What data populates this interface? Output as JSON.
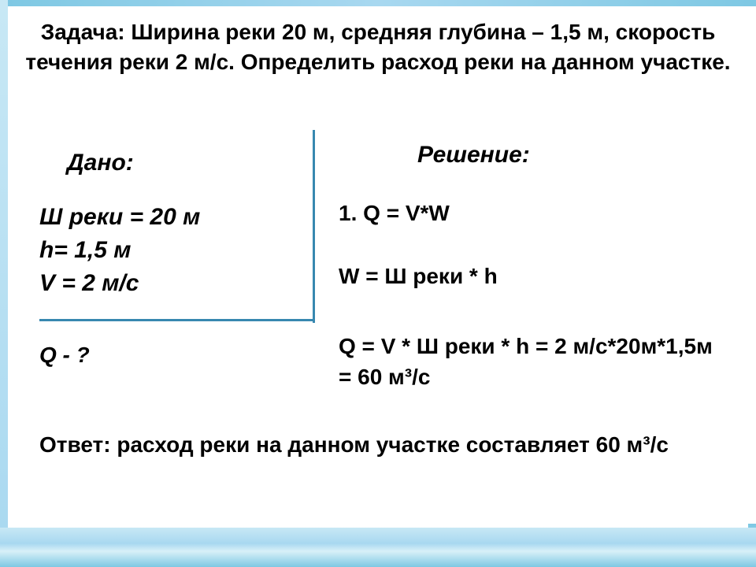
{
  "problem": {
    "statement": "Задача: Ширина реки 20 м, средняя глубина – 1,5 м, скорость течения реки 2 м/с. Определить расход реки на данном участке.",
    "statement_fontsize": 28,
    "statement_color": "#000000"
  },
  "given": {
    "label": "Дано:",
    "label_fontsize": 30,
    "line1": "Ш реки = 20 м",
    "line2": "h= 1,5 м",
    "line3": "V = 2 м/с",
    "data_fontsize": 30,
    "unknown": "Q - ?",
    "unknown_fontsize": 28
  },
  "solution": {
    "label": "Решение:",
    "label_fontsize": 30,
    "step1": "1. Q = V*W",
    "step2": "W = Ш реки * h",
    "step3": "Q = V *  Ш реки * h = 2 м/с*20м*1,5м = 60 м³/с",
    "step_fontsize": 28
  },
  "answer": {
    "text": "Ответ: расход реки на данном участке составляет 60 м³/с",
    "fontsize": 28
  },
  "styling": {
    "background_color": "#ffffff",
    "text_color": "#000000",
    "divider_color": "#3888b0",
    "border_gradient_light": "#c8e8f5",
    "border_gradient_mid": "#a8d8f0",
    "border_gradient_dark": "#7ec8e3"
  }
}
